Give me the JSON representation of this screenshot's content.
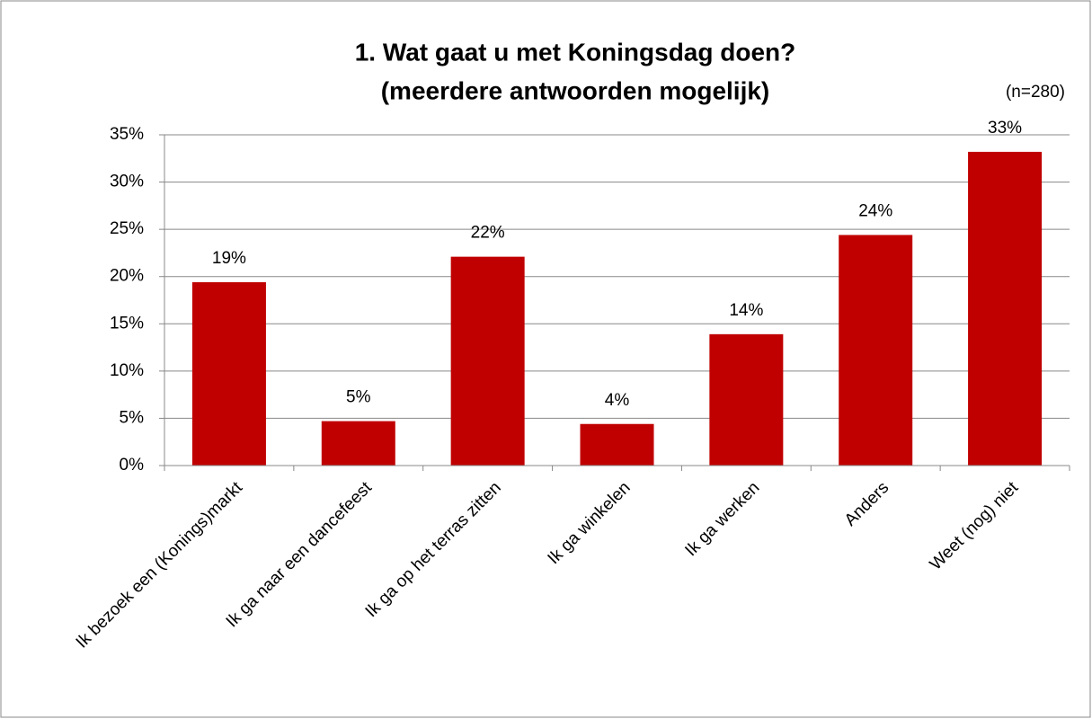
{
  "chart_data": {
    "type": "bar",
    "title": [
      "1. Wat gaat u met Koningsdag doen?",
      "(meerdere antwoorden mogelijk)"
    ],
    "annotation": "(n=280)",
    "categories": [
      "Ik bezoek een (Konings)markt",
      "Ik ga naar een dancefeest",
      "Ik ga op het terras zitten",
      "Ik ga winkelen",
      "Ik ga werken",
      "Anders",
      "Weet (nog) niet"
    ],
    "values": [
      19.4,
      4.7,
      22.1,
      4.4,
      13.9,
      24.4,
      33.2
    ],
    "value_labels": [
      "19%",
      "5%",
      "22%",
      "4%",
      "14%",
      "24%",
      "33%"
    ],
    "color": "#c00000",
    "ylim": [
      0,
      35
    ],
    "yticks": [
      {
        "value": 0,
        "label": "0%"
      },
      {
        "value": 5,
        "label": "5%"
      },
      {
        "value": 10,
        "label": "10%"
      },
      {
        "value": 15,
        "label": "15%"
      },
      {
        "value": 20,
        "label": "20%"
      },
      {
        "value": 25,
        "label": "25%"
      },
      {
        "value": 30,
        "label": "30%"
      },
      {
        "value": 35,
        "label": "35%"
      }
    ],
    "grid": true
  }
}
